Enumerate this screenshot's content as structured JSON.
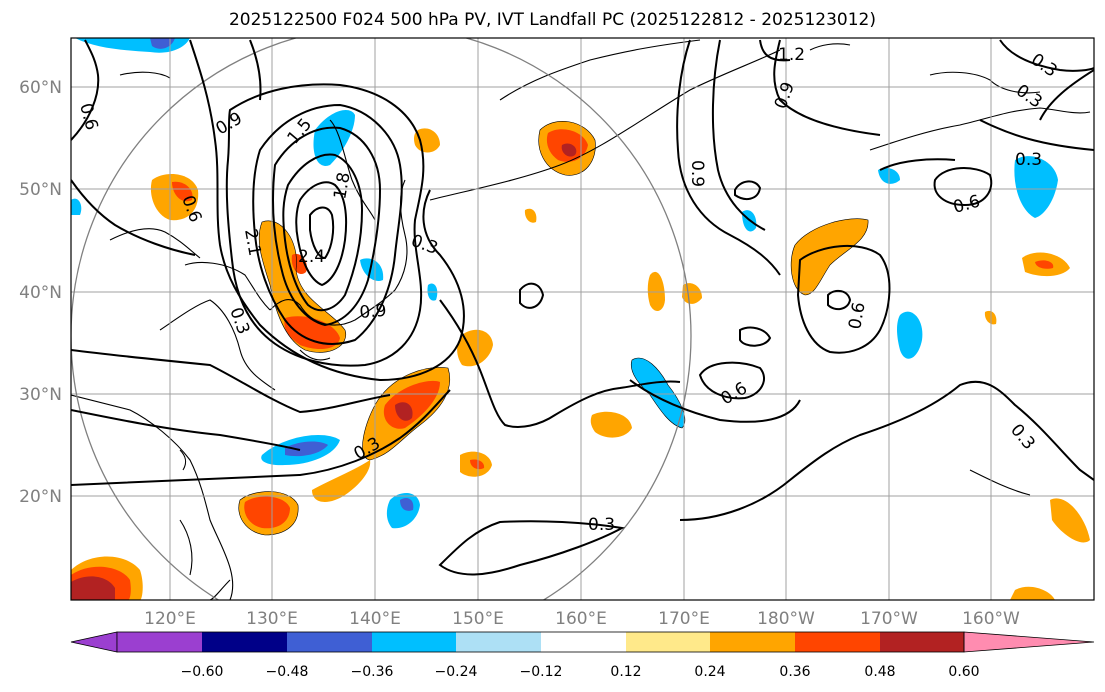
{
  "title": "2025122500 F024 500 hPa PV, IVT Landfall PC (2025122812 - 2025123012)",
  "map": {
    "lon_ticks": [
      "120°E",
      "130°E",
      "140°E",
      "150°E",
      "160°E",
      "170°E",
      "180°W",
      "170°W",
      "160°W"
    ],
    "lat_ticks": [
      "60°N",
      "50°N",
      "40°N",
      "30°N",
      "20°N"
    ],
    "contour_labels": [
      "1.2",
      "0.3",
      "0.3",
      "0.6",
      "0.9",
      "1.5",
      "0.9",
      "0.6",
      "1.8",
      "2.1",
      "2.4",
      "0.3",
      "0.9",
      "0.3",
      "0.3",
      "0.6",
      "0.3",
      "0.6",
      "0.9",
      "0.6",
      "0.3",
      "0.3"
    ]
  },
  "colorbar": {
    "tick_labels": [
      "−0.60",
      "−0.48",
      "−0.36",
      "−0.24",
      "−0.12",
      "0.12",
      "0.24",
      "0.36",
      "0.48",
      "0.60"
    ],
    "colors": [
      "#9b3fd0",
      "#000088",
      "#3f5fd4",
      "#00bfff",
      "#ade0f5",
      "#ffffff",
      "#ffe98a",
      "#ffa500",
      "#ff4500",
      "#b22222",
      "#ff8cb0"
    ]
  }
}
